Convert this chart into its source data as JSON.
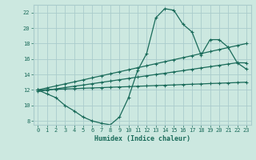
{
  "xlabel": "Humidex (Indice chaleur)",
  "bg_color": "#cce8e0",
  "grid_color": "#aacccc",
  "line_color": "#1a6b5a",
  "xlim": [
    -0.5,
    23.5
  ],
  "ylim": [
    7.5,
    23.0
  ],
  "xticks": [
    0,
    1,
    2,
    3,
    4,
    5,
    6,
    7,
    8,
    9,
    10,
    11,
    12,
    13,
    14,
    15,
    16,
    17,
    18,
    19,
    20,
    21,
    22,
    23
  ],
  "yticks": [
    8,
    10,
    12,
    14,
    16,
    18,
    20,
    22
  ],
  "curve1_x": [
    0,
    1,
    2,
    3,
    4,
    5,
    6,
    7,
    8,
    9,
    10,
    11,
    12,
    13,
    14,
    15,
    16,
    17,
    18,
    19,
    20,
    21,
    22,
    23
  ],
  "curve1_y": [
    12.0,
    11.5,
    11.0,
    10.0,
    9.3,
    8.5,
    8.0,
    7.7,
    7.5,
    8.5,
    11.0,
    14.5,
    16.7,
    21.3,
    22.5,
    22.3,
    20.5,
    19.5,
    16.5,
    18.5,
    18.5,
    17.5,
    15.5,
    14.7
  ],
  "line2_x": [
    0,
    1,
    2,
    3,
    4,
    5,
    6,
    7,
    8,
    9,
    10,
    11,
    12,
    13,
    14,
    15,
    16,
    17,
    18,
    19,
    20,
    21,
    22,
    23
  ],
  "line2_y": [
    12.0,
    12.26,
    12.52,
    12.78,
    13.04,
    13.3,
    13.57,
    13.83,
    14.09,
    14.35,
    14.61,
    14.87,
    15.13,
    15.39,
    15.65,
    15.91,
    16.17,
    16.43,
    16.7,
    16.96,
    17.22,
    17.48,
    17.74,
    18.0
  ],
  "line3_x": [
    0,
    1,
    2,
    3,
    4,
    5,
    6,
    7,
    8,
    9,
    10,
    11,
    12,
    13,
    14,
    15,
    16,
    17,
    18,
    19,
    20,
    21,
    22,
    23
  ],
  "line3_y": [
    12.0,
    12.04,
    12.09,
    12.13,
    12.17,
    12.22,
    12.26,
    12.3,
    12.35,
    12.39,
    12.43,
    12.48,
    12.52,
    12.57,
    12.61,
    12.65,
    12.7,
    12.74,
    12.78,
    12.83,
    12.87,
    12.91,
    12.96,
    13.0
  ],
  "line4_x": [
    0,
    1,
    2,
    3,
    4,
    5,
    6,
    7,
    8,
    9,
    10,
    11,
    12,
    13,
    14,
    15,
    16,
    17,
    18,
    19,
    20,
    21,
    22,
    23
  ],
  "line4_y": [
    11.8,
    11.97,
    12.14,
    12.31,
    12.48,
    12.64,
    12.81,
    12.98,
    13.15,
    13.32,
    13.49,
    13.66,
    13.83,
    14.0,
    14.16,
    14.33,
    14.5,
    14.67,
    14.84,
    15.01,
    15.18,
    15.35,
    15.52,
    15.5
  ],
  "marker": "+",
  "markersize": 3,
  "linewidth": 0.9
}
